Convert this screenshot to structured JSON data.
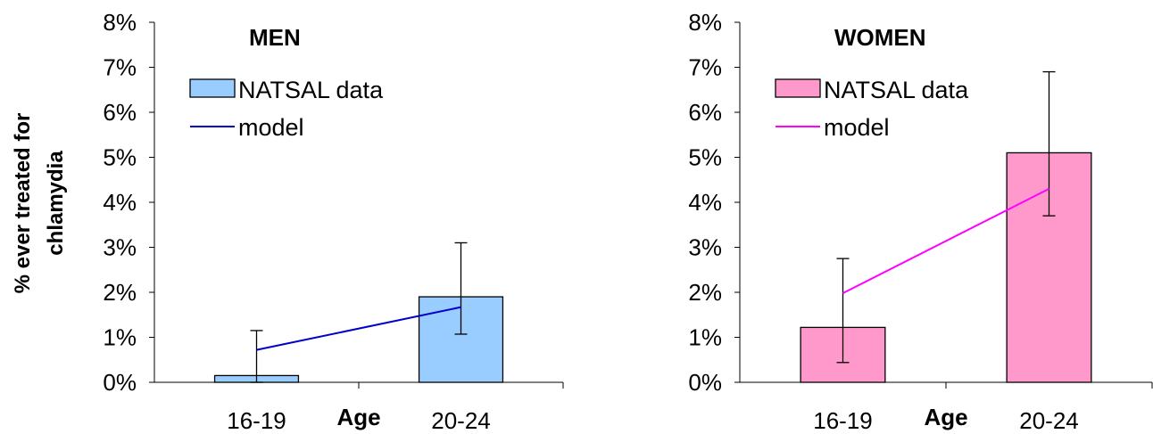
{
  "y_axis_label": "% ever treated for chlamydia",
  "x_axis_label": "Age",
  "chart_data": [
    {
      "type": "bar",
      "title": "MEN",
      "xlabel": "Age",
      "ylabel": "% ever treated for chlamydia",
      "categories": [
        "16-19",
        "20-24"
      ],
      "ylim": [
        0,
        8
      ],
      "yticks": [
        "0%",
        "1%",
        "2%",
        "3%",
        "4%",
        "5%",
        "6%",
        "7%",
        "8%"
      ],
      "series": [
        {
          "name": "NATSAL data",
          "kind": "bar",
          "color": "#99ccff",
          "values": [
            0.15,
            1.9
          ],
          "error_low": [
            0.0,
            1.07
          ],
          "error_high": [
            1.15,
            3.1
          ]
        },
        {
          "name": "model",
          "kind": "line",
          "color": "#0000cc",
          "values": [
            0.72,
            1.67
          ]
        }
      ],
      "legend": "top-left",
      "grid": false
    },
    {
      "type": "bar",
      "title": "WOMEN",
      "xlabel": "Age",
      "categories": [
        "16-19",
        "20-24"
      ],
      "ylim": [
        0,
        8
      ],
      "yticks": [
        "0%",
        "1%",
        "2%",
        "3%",
        "4%",
        "5%",
        "6%",
        "7%",
        "8%"
      ],
      "series": [
        {
          "name": "NATSAL data",
          "kind": "bar",
          "color": "#ff99cc",
          "values": [
            1.22,
            5.1
          ],
          "error_low": [
            0.44,
            3.7
          ],
          "error_high": [
            2.75,
            6.9
          ]
        },
        {
          "name": "model",
          "kind": "line",
          "color": "#ff00ff",
          "values": [
            1.98,
            4.3
          ]
        }
      ],
      "legend": "top-left",
      "grid": false
    }
  ]
}
